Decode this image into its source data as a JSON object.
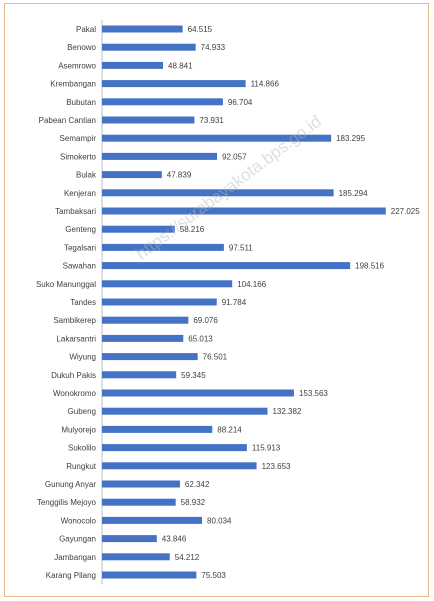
{
  "chart_data": {
    "type": "bar",
    "orientation": "horizontal",
    "title": "",
    "xlabel": "",
    "ylabel": "",
    "categories": [
      "Pakal",
      "Benowo",
      "Asemrowo",
      "Krembangan",
      "Bubutan",
      "Pabean Cantian",
      "Semampir",
      "Simokerto",
      "Bulak",
      "Kenjeran",
      "Tambaksari",
      "Genteng",
      "Tegalsari",
      "Sawahan",
      "Suko Manunggal",
      "Tandes",
      "Sambikerep",
      "Lakarsantri",
      "Wiyung",
      "Dukuh Pakis",
      "Wonokromo",
      "Gubeng",
      "Mulyorejo",
      "Sukolilo",
      "Rungkut",
      "Gunung Anyar",
      "Tenggilis Mejoyo",
      "Wonocolo",
      "Gayungan",
      "Jambangan",
      "Karang Pilang"
    ],
    "values": [
      64515,
      74933,
      48841,
      114866,
      96704,
      73931,
      183295,
      92057,
      47839,
      185294,
      227025,
      58216,
      97511,
      198516,
      104166,
      91784,
      69076,
      65013,
      76501,
      59345,
      153563,
      132382,
      88214,
      115913,
      123653,
      62342,
      58932,
      80034,
      43846,
      54212,
      75503
    ],
    "value_labels": [
      "64.515",
      "74.933",
      "48.841",
      "114.866",
      "96.704",
      "73.931",
      "183.295",
      "92.057",
      "47.839",
      "185.294",
      "227.025",
      "58.216",
      "97.511",
      "198.516",
      "104.166",
      "91.784",
      "69.076",
      "65.013",
      "76.501",
      "59.345",
      "153.563",
      "132.382",
      "88.214",
      "115.913",
      "123.653",
      "62.342",
      "58.932",
      "80.034",
      "43.846",
      "54.212",
      "75.503"
    ],
    "xlim": [
      0,
      230000
    ],
    "grid": false,
    "legend": "none",
    "bar_color": "#4472c4",
    "watermark": "https://surabayakota.bps.go.id"
  }
}
